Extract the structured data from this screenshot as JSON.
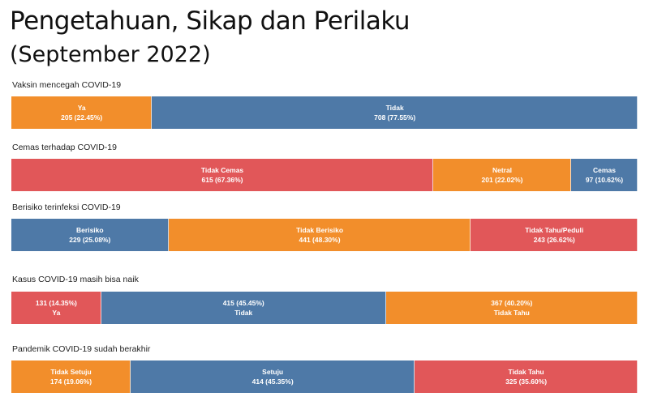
{
  "title": "Pengetahuan, Sikap dan Perilaku",
  "subtitle": "(September 2022)",
  "colors": {
    "orange": "#F28E2B",
    "blue": "#4E79A7",
    "red": "#E15759"
  },
  "chart_data": [
    {
      "type": "bar",
      "orientation": "horizontal-stacked-100",
      "title": "Vaksin mencegah COVID-19",
      "label_order": "name-first",
      "segments": [
        {
          "name": "Ya",
          "count": 205,
          "percent": 22.45,
          "percent_label": "205 (22.45%)",
          "color": "#F28E2B"
        },
        {
          "name": "Tidak",
          "count": 708,
          "percent": 77.55,
          "percent_label": "708 (77.55%)",
          "color": "#4E79A7"
        }
      ]
    },
    {
      "type": "bar",
      "orientation": "horizontal-stacked-100",
      "title": "Cemas terhadap COVID-19",
      "label_order": "name-first",
      "segments": [
        {
          "name": "Tidak Cemas",
          "count": 615,
          "percent": 67.36,
          "percent_label": "615 (67.36%)",
          "color": "#E15759"
        },
        {
          "name": "Netral",
          "count": 201,
          "percent": 22.02,
          "percent_label": "201 (22.02%)",
          "color": "#F28E2B"
        },
        {
          "name": "Cemas",
          "count": 97,
          "percent": 10.62,
          "percent_label": "97 (10.62%)",
          "color": "#4E79A7"
        }
      ]
    },
    {
      "type": "bar",
      "orientation": "horizontal-stacked-100",
      "title": "Berisiko terinfeksi COVID-19",
      "label_order": "name-first",
      "segments": [
        {
          "name": "Berisiko",
          "count": 229,
          "percent": 25.08,
          "percent_label": "229 (25.08%)",
          "color": "#4E79A7"
        },
        {
          "name": "Tidak Berisiko",
          "count": 441,
          "percent": 48.3,
          "percent_label": "441 (48.30%)",
          "color": "#F28E2B"
        },
        {
          "name": "Tidak Tahu/Peduli",
          "count": 243,
          "percent": 26.62,
          "percent_label": "243 (26.62%)",
          "color": "#E15759"
        }
      ]
    },
    {
      "type": "bar",
      "orientation": "horizontal-stacked-100",
      "title": "Kasus COVID-19 masih bisa naik",
      "label_order": "value-first",
      "segments": [
        {
          "name": "Ya",
          "count": 131,
          "percent": 14.35,
          "percent_label": "131 (14.35%)",
          "color": "#E15759"
        },
        {
          "name": "Tidak",
          "count": 415,
          "percent": 45.45,
          "percent_label": "415 (45.45%)",
          "color": "#4E79A7"
        },
        {
          "name": "Tidak Tahu",
          "count": 367,
          "percent": 40.2,
          "percent_label": "367 (40.20%)",
          "color": "#F28E2B"
        }
      ]
    },
    {
      "type": "bar",
      "orientation": "horizontal-stacked-100",
      "title": "Pandemik COVID-19 sudah berakhir",
      "label_order": "name-first",
      "segments": [
        {
          "name": "Tidak Setuju",
          "count": 174,
          "percent": 19.06,
          "percent_label": "174 (19.06%)",
          "color": "#F28E2B"
        },
        {
          "name": "Setuju",
          "count": 414,
          "percent": 45.35,
          "percent_label": "414 (45.35%)",
          "color": "#4E79A7"
        },
        {
          "name": "Tidak Tahu",
          "count": 325,
          "percent": 35.6,
          "percent_label": "325 (35.60%)",
          "color": "#E15759"
        }
      ]
    }
  ]
}
